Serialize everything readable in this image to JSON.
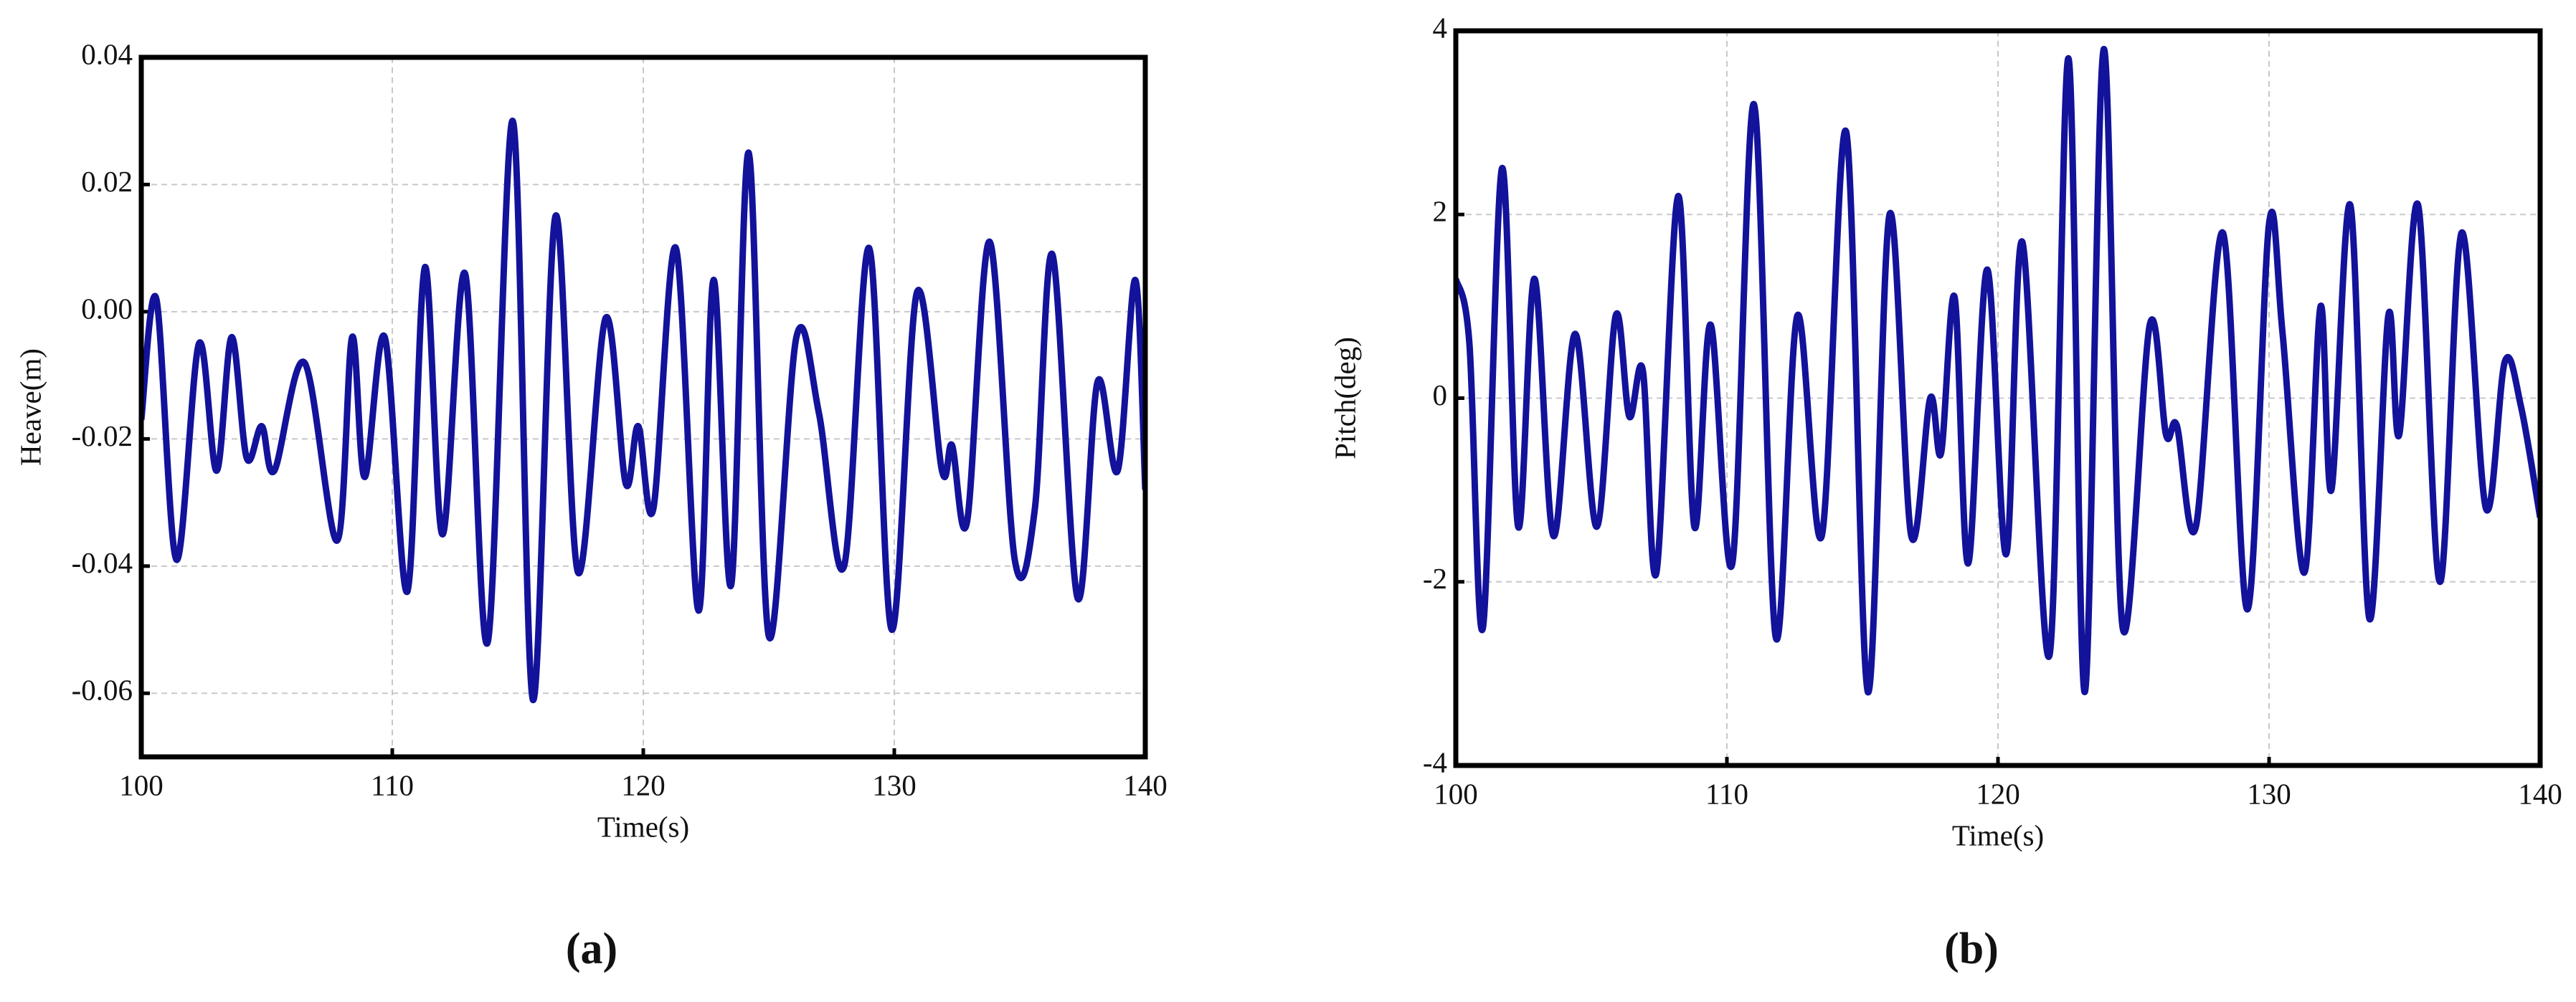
{
  "chart_data": [
    {
      "type": "line",
      "caption": "(a)",
      "x_label": "Time(s)",
      "y_label": "Heave(m)",
      "xlim": [
        100,
        140
      ],
      "xticks": [
        100,
        110,
        120,
        130,
        140
      ],
      "ylim": [
        -0.07,
        0.04
      ],
      "yticks": [
        -0.06,
        -0.04,
        -0.02,
        {
          "value": 0,
          "label": "0.00"
        },
        0.02,
        0.04
      ],
      "grid": true,
      "series": [
        {
          "color": "#12129a",
          "x": [
            100,
            100.6,
            101.4,
            102.3,
            103.0,
            103.6,
            104.2,
            104.8,
            105.3,
            106.5,
            107.8,
            108.4,
            108.9,
            109.7,
            110.6,
            111.3,
            112.0,
            112.9,
            113.8,
            114.8,
            115.6,
            116.5,
            117.4,
            118.5,
            119.3,
            119.8,
            120.4,
            121.3,
            122.2,
            122.8,
            123.5,
            124.2,
            125.0,
            126.1,
            127.0,
            128.0,
            129.0,
            129.9,
            130.9,
            131.9,
            132.3,
            132.9,
            133.8,
            134.8,
            135.6,
            136.3,
            137.3,
            138.1,
            138.9,
            139.6,
            140
          ],
          "values": [
            -0.017,
            0.002,
            -0.039,
            -0.005,
            -0.025,
            -0.004,
            -0.023,
            -0.018,
            -0.025,
            -0.008,
            -0.036,
            -0.004,
            -0.026,
            -0.004,
            -0.044,
            0.007,
            -0.035,
            0.006,
            -0.052,
            0.03,
            -0.061,
            0.015,
            -0.041,
            -0.001,
            -0.027,
            -0.018,
            -0.031,
            0.01,
            -0.047,
            0.005,
            -0.043,
            0.025,
            -0.051,
            -0.004,
            -0.016,
            -0.04,
            0.01,
            -0.05,
            0.003,
            -0.025,
            -0.021,
            -0.033,
            0.011,
            -0.039,
            -0.031,
            0.009,
            -0.045,
            -0.011,
            -0.025,
            0.005,
            -0.028
          ]
        }
      ]
    },
    {
      "type": "line",
      "caption": "(b)",
      "x_label": "Time(s)",
      "y_label": "Pitch(deg)",
      "xlim": [
        100,
        140
      ],
      "xticks": [
        100,
        110,
        120,
        130,
        140
      ],
      "ylim": [
        -4,
        4
      ],
      "yticks": [
        -4,
        -2,
        0,
        2,
        4
      ],
      "grid": true,
      "series": [
        {
          "color": "#12129a",
          "x": [
            100,
            100.5,
            101.0,
            101.7,
            102.3,
            102.9,
            103.6,
            104.4,
            105.2,
            105.9,
            106.4,
            106.9,
            107.4,
            108.2,
            108.8,
            109.4,
            110.2,
            111.0,
            111.8,
            112.6,
            113.5,
            114.4,
            115.2,
            116.0,
            116.8,
            117.5,
            117.9,
            118.4,
            118.9,
            119.6,
            120.3,
            120.9,
            121.9,
            122.6,
            123.2,
            123.9,
            124.6,
            125.6,
            126.2,
            126.6,
            127.3,
            128.3,
            129.2,
            130.0,
            130.5,
            131.3,
            131.9,
            132.3,
            133.0,
            133.7,
            134.4,
            134.8,
            135.5,
            136.3,
            137.1,
            138.0,
            138.7,
            139.3,
            140
          ],
          "values": [
            1.3,
            0.6,
            -2.5,
            2.5,
            -1.4,
            1.3,
            -1.5,
            0.7,
            -1.4,
            0.9,
            -0.2,
            0.3,
            -1.9,
            2.2,
            -1.4,
            0.8,
            -1.8,
            3.2,
            -2.6,
            0.9,
            -1.5,
            2.9,
            -3.2,
            2.0,
            -1.5,
            0.0,
            -0.6,
            1.1,
            -1.8,
            1.4,
            -1.7,
            1.7,
            -2.8,
            3.7,
            -3.2,
            3.8,
            -2.5,
            0.8,
            -0.4,
            -0.3,
            -1.4,
            1.8,
            -2.3,
            1.9,
            0.7,
            -1.9,
            1.0,
            -1.0,
            2.1,
            -2.4,
            0.9,
            -0.4,
            2.1,
            -2.0,
            1.8,
            -1.2,
            0.4,
            -0.1,
            -1.3
          ]
        }
      ]
    }
  ]
}
